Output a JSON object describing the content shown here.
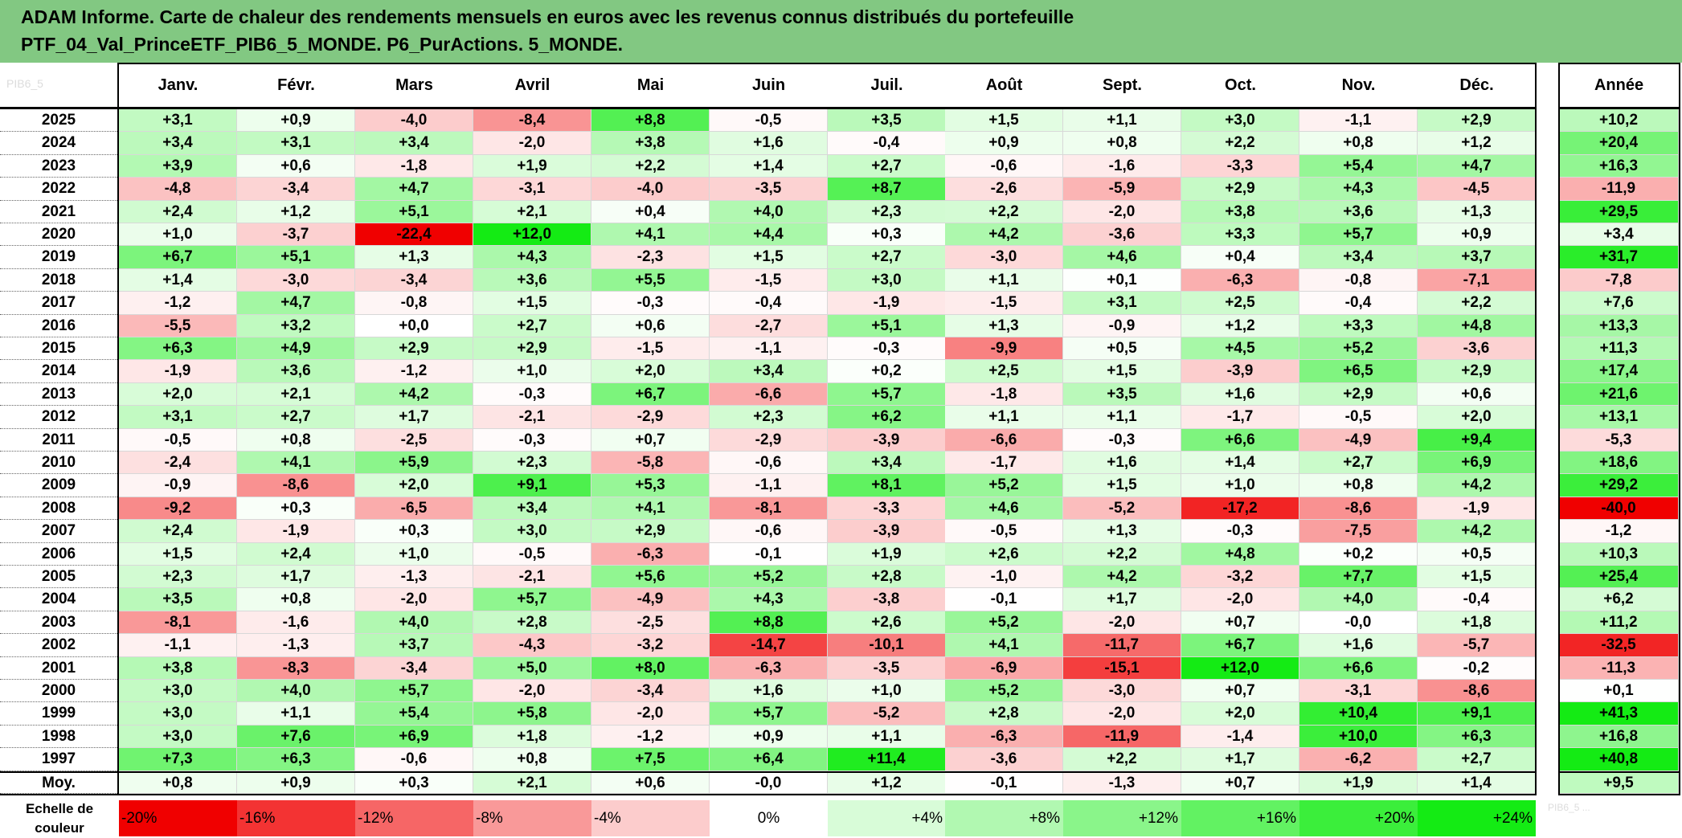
{
  "title_line1": "ADAM Informe. Carte de chaleur des rendements mensuels en euros avec les revenus connus distribués du portefeuille",
  "title_line2": "PTF_04_Val_PrinceETF_PIB6_5_MONDE. P6_PurActions. 5_MONDE.",
  "corner_label": "PIB6_5",
  "colors": {
    "banner": "#82c882"
  },
  "chart_data": {
    "type": "heatmap",
    "columns": [
      "Janv.",
      "Févr.",
      "Mars",
      "Avril",
      "Mai",
      "Juin",
      "Juil.",
      "Août",
      "Sept.",
      "Oct.",
      "Nov.",
      "Déc."
    ],
    "annual_header": "Année",
    "rows": [
      {
        "year": "2025",
        "values": [
          3.1,
          0.9,
          -4.0,
          -8.4,
          8.8,
          -0.5,
          3.5,
          1.5,
          1.1,
          3.0,
          -1.1,
          2.9
        ],
        "annual": 10.2
      },
      {
        "year": "2024",
        "values": [
          3.4,
          3.1,
          3.4,
          -2.0,
          3.8,
          1.6,
          -0.4,
          0.9,
          0.8,
          2.2,
          0.8,
          1.2
        ],
        "annual": 20.4
      },
      {
        "year": "2023",
        "values": [
          3.9,
          0.6,
          -1.8,
          1.9,
          2.2,
          1.4,
          2.7,
          -0.6,
          -1.6,
          -3.3,
          5.4,
          4.7
        ],
        "annual": 16.3
      },
      {
        "year": "2022",
        "values": [
          -4.8,
          -3.4,
          4.7,
          -3.1,
          -4.0,
          -3.5,
          8.7,
          -2.6,
          -5.9,
          2.9,
          4.3,
          -4.5
        ],
        "annual": -11.9
      },
      {
        "year": "2021",
        "values": [
          2.4,
          1.2,
          5.1,
          2.1,
          0.4,
          4.0,
          2.3,
          2.2,
          -2.0,
          3.8,
          3.6,
          1.3
        ],
        "annual": 29.5
      },
      {
        "year": "2020",
        "values": [
          1.0,
          -3.7,
          -22.4,
          12.0,
          4.1,
          4.4,
          0.3,
          4.2,
          -3.6,
          3.3,
          5.7,
          0.9
        ],
        "annual": 3.4
      },
      {
        "year": "2019",
        "values": [
          6.7,
          5.1,
          1.3,
          4.3,
          -2.3,
          1.5,
          2.7,
          -3.0,
          4.6,
          0.4,
          3.4,
          3.7
        ],
        "annual": 31.7
      },
      {
        "year": "2018",
        "values": [
          1.4,
          -3.0,
          -3.4,
          3.6,
          5.5,
          -1.5,
          3.0,
          1.1,
          0.1,
          -6.3,
          -0.8,
          -7.1
        ],
        "annual": -7.8
      },
      {
        "year": "2017",
        "values": [
          -1.2,
          4.7,
          -0.8,
          1.5,
          -0.3,
          -0.4,
          -1.9,
          -1.5,
          3.1,
          2.5,
          -0.4,
          2.2
        ],
        "annual": 7.6
      },
      {
        "year": "2016",
        "values": [
          -5.5,
          3.2,
          0.0,
          2.7,
          0.6,
          -2.7,
          5.1,
          1.3,
          -0.9,
          1.2,
          3.3,
          4.8
        ],
        "annual": 13.3
      },
      {
        "year": "2015",
        "values": [
          6.3,
          4.9,
          2.9,
          2.9,
          -1.5,
          -1.1,
          -0.3,
          -9.9,
          0.5,
          4.5,
          5.2,
          -3.6
        ],
        "annual": 11.3
      },
      {
        "year": "2014",
        "values": [
          -1.9,
          3.6,
          -1.2,
          1.0,
          2.0,
          3.4,
          0.2,
          2.5,
          1.5,
          -3.9,
          6.5,
          2.9
        ],
        "annual": 17.4
      },
      {
        "year": "2013",
        "values": [
          2.0,
          2.1,
          4.2,
          -0.3,
          6.7,
          -6.6,
          5.7,
          -1.8,
          3.5,
          1.6,
          2.9,
          0.6
        ],
        "annual": 21.6
      },
      {
        "year": "2012",
        "values": [
          3.1,
          2.7,
          1.7,
          -2.1,
          -2.9,
          2.3,
          6.2,
          1.1,
          1.1,
          -1.7,
          -0.5,
          2.0
        ],
        "annual": 13.1
      },
      {
        "year": "2011",
        "values": [
          -0.5,
          0.8,
          -2.5,
          -0.3,
          0.7,
          -2.9,
          -3.9,
          -6.6,
          -0.3,
          6.6,
          -4.9,
          9.4
        ],
        "annual": -5.3
      },
      {
        "year": "2010",
        "values": [
          -2.4,
          4.1,
          5.9,
          2.3,
          -5.8,
          -0.6,
          3.4,
          -1.7,
          1.6,
          1.4,
          2.7,
          6.9
        ],
        "annual": 18.6
      },
      {
        "year": "2009",
        "values": [
          -0.9,
          -8.6,
          2.0,
          9.1,
          5.3,
          -1.1,
          8.1,
          5.2,
          1.5,
          1.0,
          0.8,
          4.2
        ],
        "annual": 29.2
      },
      {
        "year": "2008",
        "values": [
          -9.2,
          0.3,
          -6.5,
          3.4,
          4.1,
          -8.1,
          -3.3,
          4.6,
          -5.2,
          -17.2,
          -8.6,
          -1.9
        ],
        "annual": -40.0
      },
      {
        "year": "2007",
        "values": [
          2.4,
          -1.9,
          0.3,
          3.0,
          2.9,
          -0.6,
          -3.9,
          -0.5,
          1.3,
          -0.3,
          -7.5,
          4.2
        ],
        "annual": -1.2
      },
      {
        "year": "2006",
        "values": [
          1.5,
          2.4,
          1.0,
          -0.5,
          -6.3,
          -0.1,
          1.9,
          2.6,
          2.2,
          4.8,
          0.2,
          0.5
        ],
        "annual": 10.3
      },
      {
        "year": "2005",
        "values": [
          2.3,
          1.7,
          -1.3,
          -2.1,
          5.6,
          5.2,
          2.8,
          -1.0,
          4.2,
          -3.2,
          7.7,
          1.5
        ],
        "annual": 25.4
      },
      {
        "year": "2004",
        "values": [
          3.5,
          0.8,
          -2.0,
          5.7,
          -4.9,
          4.3,
          -3.8,
          -0.1,
          1.7,
          -2.0,
          4.0,
          -0.4
        ],
        "annual": 6.2
      },
      {
        "year": "2003",
        "values": [
          -8.1,
          -1.6,
          4.0,
          2.8,
          -2.5,
          8.8,
          2.6,
          5.2,
          -2.0,
          0.7,
          -0.0,
          1.8
        ],
        "annual": 11.2
      },
      {
        "year": "2002",
        "values": [
          -1.1,
          -1.3,
          3.7,
          -4.3,
          -3.2,
          -14.7,
          -10.1,
          4.1,
          -11.7,
          6.7,
          1.6,
          -5.7
        ],
        "annual": -32.5
      },
      {
        "year": "2001",
        "values": [
          3.8,
          -8.3,
          -3.4,
          5.0,
          8.0,
          -6.3,
          -3.5,
          -6.9,
          -15.1,
          12.0,
          6.6,
          -0.2
        ],
        "annual": -11.3
      },
      {
        "year": "2000",
        "values": [
          3.0,
          4.0,
          5.7,
          -2.0,
          -3.4,
          1.6,
          1.0,
          5.2,
          -3.0,
          0.7,
          -3.1,
          -8.6
        ],
        "annual": 0.1
      },
      {
        "year": "1999",
        "values": [
          3.0,
          1.1,
          5.4,
          5.8,
          -2.0,
          5.7,
          -5.2,
          2.8,
          -2.0,
          2.0,
          10.4,
          9.1
        ],
        "annual": 41.3
      },
      {
        "year": "1998",
        "values": [
          3.0,
          7.6,
          6.9,
          1.8,
          -1.2,
          0.9,
          1.1,
          -6.3,
          -11.9,
          -1.4,
          10.0,
          6.3
        ],
        "annual": 16.8
      },
      {
        "year": "1997",
        "values": [
          7.3,
          6.3,
          -0.6,
          0.8,
          7.5,
          6.4,
          11.4,
          -3.6,
          2.2,
          1.7,
          -6.2,
          2.7
        ],
        "annual": 40.8
      }
    ],
    "average_label": "Moy.",
    "averages": [
      0.8,
      0.9,
      0.3,
      2.1,
      0.6,
      -0.0,
      1.2,
      -0.1,
      -1.3,
      0.7,
      1.9,
      1.4
    ],
    "average_annual": 9.5,
    "scale_label": "Echelle de couleur",
    "scale_values": [
      -20,
      -16,
      -12,
      -8,
      -4,
      0,
      4,
      8,
      12,
      16,
      20,
      24
    ],
    "scale_labels": [
      "-20%",
      "-16%",
      "-12%",
      "-8%",
      "-4%",
      "0%",
      "+4%",
      "+8%",
      "+12%",
      "+16%",
      "+20%",
      "+24%"
    ],
    "scale_note": "PIB6_5 ..."
  }
}
